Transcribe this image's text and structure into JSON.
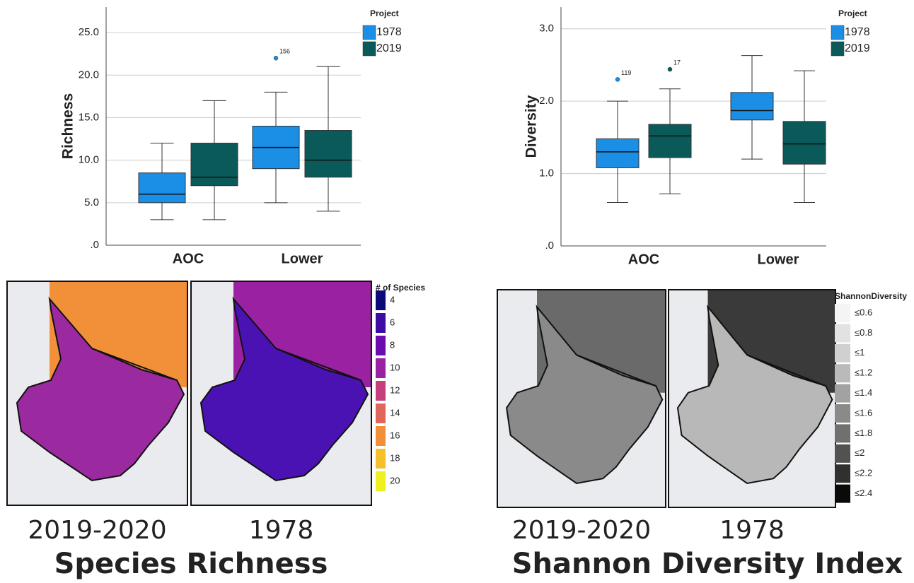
{
  "chart_data": [
    {
      "type": "boxplot",
      "y_label": "Richness",
      "categories": [
        "AOC",
        "Lower"
      ],
      "ylim": [
        0,
        28
      ],
      "yticks": [
        {
          "value": 0,
          "label": ".0"
        },
        {
          "value": 5,
          "label": "5.0"
        },
        {
          "value": 10,
          "label": "10.0"
        },
        {
          "value": 15,
          "label": "15.0"
        },
        {
          "value": 20,
          "label": "20.0"
        },
        {
          "value": 25,
          "label": "25.0"
        }
      ],
      "grid": true,
      "legend_title": "Project",
      "series": [
        {
          "name": "1978",
          "color": "#1b8fe6",
          "values": [
            {
              "min": 3,
              "q1": 5,
              "median": 6,
              "q3": 8.5,
              "max": 12,
              "outliers": []
            },
            {
              "min": 5,
              "q1": 9,
              "median": 11.5,
              "q3": 14,
              "max": 18,
              "outliers": [
                {
                  "value": 22,
                  "label": "156"
                }
              ]
            }
          ]
        },
        {
          "name": "2019",
          "color": "#0b5a5a",
          "values": [
            {
              "min": 3,
              "q1": 7,
              "median": 8,
              "q3": 12,
              "max": 17,
              "outliers": []
            },
            {
              "min": 4,
              "q1": 8,
              "median": 10,
              "q3": 13.5,
              "max": 21,
              "outliers": []
            }
          ]
        }
      ]
    },
    {
      "type": "boxplot",
      "y_label": "Diversity",
      "categories": [
        "AOC",
        "Lower"
      ],
      "ylim": [
        0,
        3.3
      ],
      "yticks": [
        {
          "value": 0,
          "label": ".0"
        },
        {
          "value": 1,
          "label": "1.0"
        },
        {
          "value": 2,
          "label": "2.0"
        },
        {
          "value": 3,
          "label": "3.0"
        }
      ],
      "grid": true,
      "legend_title": "Project",
      "series": [
        {
          "name": "1978",
          "color": "#1b8fe6",
          "values": [
            {
              "min": 0.6,
              "q1": 1.08,
              "median": 1.3,
              "q3": 1.48,
              "max": 2.0,
              "outliers": [
                {
                  "value": 2.3,
                  "label": "119"
                }
              ]
            },
            {
              "min": 1.2,
              "q1": 1.74,
              "median": 1.87,
              "q3": 2.12,
              "max": 2.63,
              "outliers": []
            }
          ]
        },
        {
          "name": "2019",
          "color": "#0b5a5a",
          "values": [
            {
              "min": 0.72,
              "q1": 1.22,
              "median": 1.52,
              "q3": 1.68,
              "max": 2.17,
              "outliers": [
                {
                  "value": 2.44,
                  "label": "17"
                }
              ]
            },
            {
              "min": 0.6,
              "q1": 1.13,
              "median": 1.41,
              "q3": 1.72,
              "max": 2.42,
              "outliers": []
            }
          ]
        }
      ]
    }
  ],
  "maps": [
    {
      "caption": "Species Richness",
      "panels": [
        "2019-2020",
        "1978"
      ],
      "legend_title": "# of Species",
      "legend": [
        {
          "label": "4",
          "color": "#0c0a7a"
        },
        {
          "label": "6",
          "color": "#3d0ca4"
        },
        {
          "label": "8",
          "color": "#6a0cb0"
        },
        {
          "label": "10",
          "color": "#9a22a2"
        },
        {
          "label": "12",
          "color": "#c5407a"
        },
        {
          "label": "14",
          "color": "#e0655a"
        },
        {
          "label": "16",
          "color": "#f2903a"
        },
        {
          "label": "18",
          "color": "#f6c02a"
        },
        {
          "label": "20",
          "color": "#eef022"
        }
      ]
    },
    {
      "caption": "Shannon Diversity Index",
      "panels": [
        "2019-2020",
        "1978"
      ],
      "legend_title": "ShannonDiversity",
      "legend": [
        {
          "label": "≤0.6",
          "color": "#f4f4f4"
        },
        {
          "label": "≤0.8",
          "color": "#e2e2e2"
        },
        {
          "label": "≤1",
          "color": "#d0d0d0"
        },
        {
          "label": "≤1.2",
          "color": "#bababa"
        },
        {
          "label": "≤1.4",
          "color": "#a2a2a2"
        },
        {
          "label": "≤1.6",
          "color": "#8a8a8a"
        },
        {
          "label": "≤1.8",
          "color": "#707070"
        },
        {
          "label": "≤2",
          "color": "#525252"
        },
        {
          "label": "≤2.2",
          "color": "#303030"
        },
        {
          "label": "≤2.4",
          "color": "#0a0a0a"
        }
      ]
    }
  ]
}
